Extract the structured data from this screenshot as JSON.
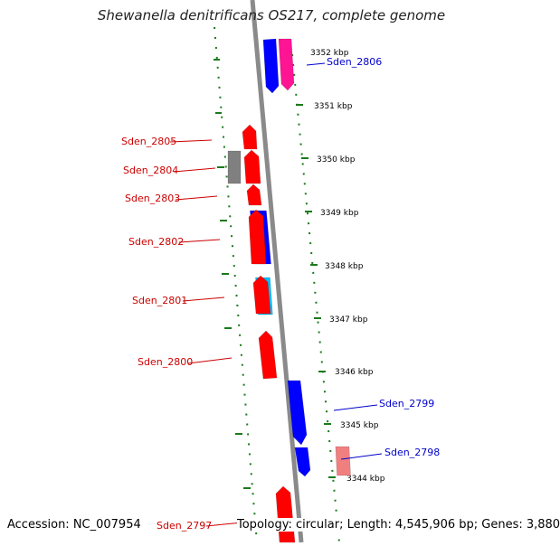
{
  "title": "Shewanella denitrificans OS217, complete genome",
  "footer": {
    "accession": "Accession: NC_007954",
    "summary": "Topology: circular; Length: 4,545,906 bp; Genes: 3,880"
  },
  "colors": {
    "backbone": "#8a8a8a",
    "tick": "#1a7a1a",
    "label_forward": "#cc0000",
    "label_reverse": "#0000cc"
  },
  "scale_labels": [
    "3352 kbp",
    "3351 kbp",
    "3350 kbp",
    "3349 kbp",
    "3348 kbp",
    "3347 kbp",
    "3346 kbp",
    "3345 kbp",
    "3344 kbp"
  ],
  "gene_labels": [
    "Sden_2806",
    "Sden_2805",
    "Sden_2804",
    "Sden_2803",
    "Sden_2802",
    "Sden_2801",
    "Sden_2800",
    "Sden_2799",
    "Sden_2798",
    "Sden_2797"
  ],
  "feature_colors": [
    "#ff0000",
    "#0000ff",
    "#ff1493",
    "#808080",
    "#00bfff",
    "#f08080"
  ]
}
